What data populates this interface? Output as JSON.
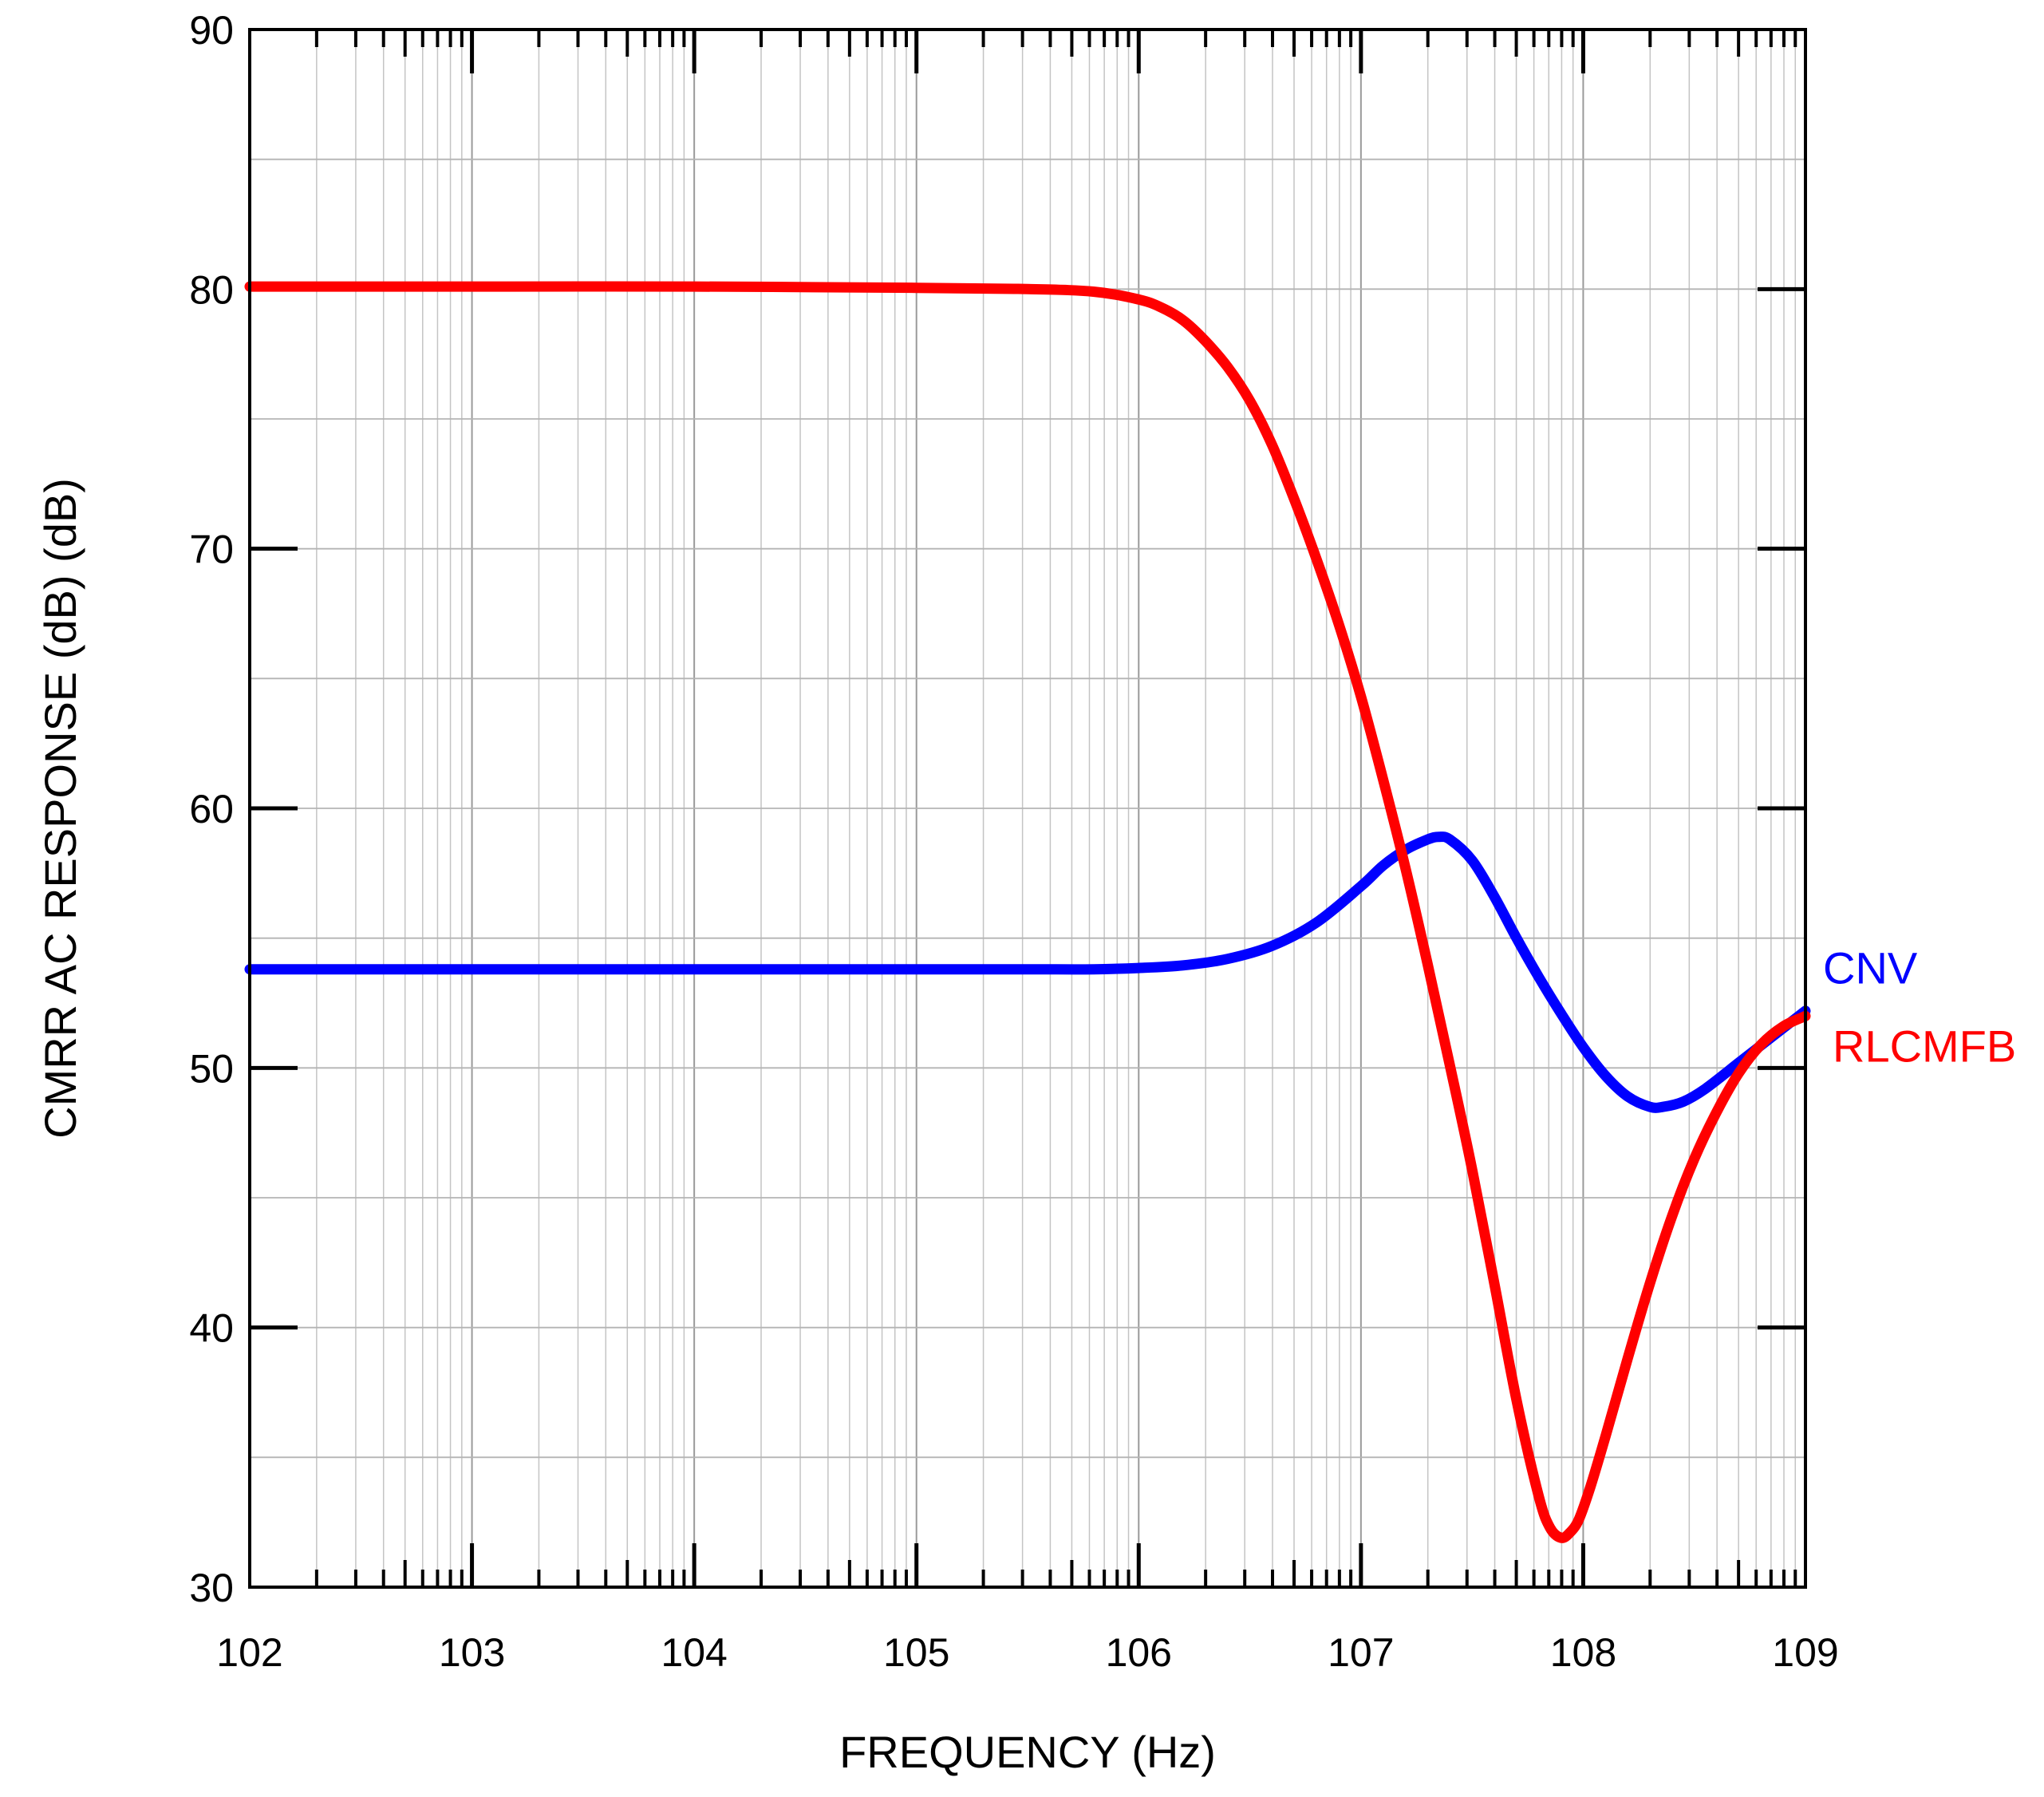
{
  "chart_data": {
    "type": "line",
    "title": "",
    "xlabel": "FREQUENCY  (Hz)",
    "ylabel": "CMRR AC RESPONSE (dB)  (dB)",
    "x_scale": "log",
    "xlim_exponent": [
      2,
      9
    ],
    "ylim": [
      30,
      90
    ],
    "grid": true,
    "x_tick_labels": [
      "102",
      "103",
      "104",
      "105",
      "106",
      "107",
      "108",
      "109"
    ],
    "y_ticks": [
      30,
      40,
      50,
      60,
      70,
      80,
      90
    ],
    "y_tick_labels": [
      "30",
      "40",
      "50",
      "60",
      "70",
      "80",
      "90"
    ],
    "series": [
      {
        "name": "CNV",
        "color": "#0000ff",
        "log10_x": [
          2,
          3,
          4,
          5,
          5.5,
          5.8,
          6.0,
          6.2,
          6.4,
          6.6,
          6.8,
          7.0,
          7.1,
          7.2,
          7.3,
          7.35,
          7.4,
          7.5,
          7.6,
          7.7,
          7.8,
          7.9,
          8.0,
          8.1,
          8.2,
          8.3,
          8.36,
          8.45,
          8.55,
          8.7,
          8.85,
          9.0
        ],
        "values": [
          53.8,
          53.8,
          53.8,
          53.8,
          53.8,
          53.8,
          53.85,
          53.95,
          54.2,
          54.7,
          55.6,
          57.0,
          57.8,
          58.4,
          58.8,
          58.9,
          58.8,
          58.0,
          56.6,
          55.0,
          53.5,
          52.1,
          50.8,
          49.7,
          48.9,
          48.5,
          48.5,
          48.7,
          49.2,
          50.2,
          51.2,
          52.2
        ]
      },
      {
        "name": "RLCMFB",
        "color": "#ff0000",
        "log10_x": [
          2,
          3,
          4,
          5,
          5.5,
          5.8,
          6.0,
          6.1,
          6.2,
          6.3,
          6.4,
          6.5,
          6.6,
          6.7,
          6.8,
          6.9,
          7.0,
          7.1,
          7.2,
          7.3,
          7.4,
          7.5,
          7.6,
          7.7,
          7.8,
          7.85,
          7.9,
          7.94,
          7.98,
          8.03,
          8.1,
          8.2,
          8.3,
          8.4,
          8.5,
          8.6,
          8.7,
          8.8,
          8.9,
          9.0
        ],
        "values": [
          80.1,
          80.1,
          80.1,
          80.05,
          80.0,
          79.9,
          79.6,
          79.3,
          78.8,
          78.0,
          77.0,
          75.7,
          74.0,
          71.9,
          69.6,
          67.1,
          64.3,
          61.1,
          57.7,
          54.0,
          50.1,
          46.1,
          41.7,
          37.2,
          33.5,
          32.3,
          31.9,
          32.1,
          32.6,
          33.8,
          35.8,
          38.8,
          41.7,
          44.3,
          46.5,
          48.3,
          49.8,
          50.9,
          51.6,
          52.0
        ]
      }
    ]
  }
}
